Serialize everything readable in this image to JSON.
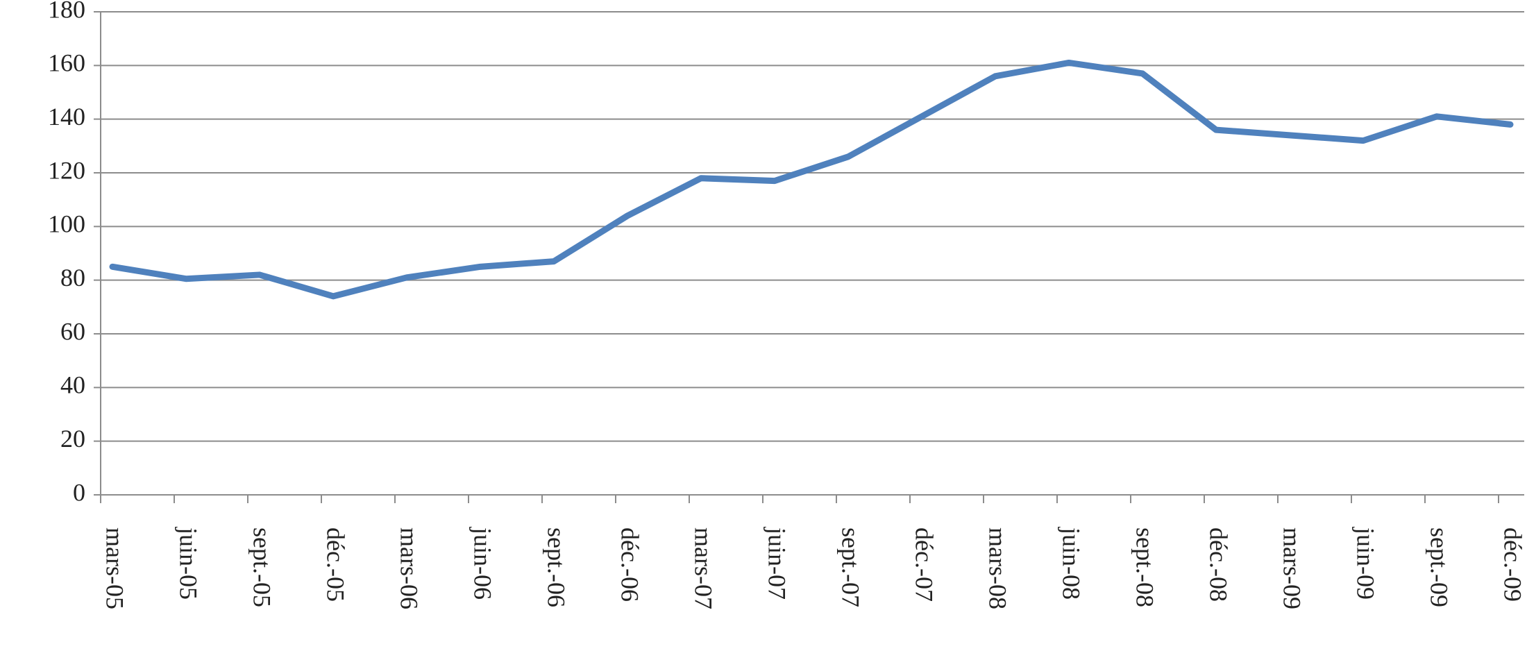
{
  "chart_data": {
    "type": "line",
    "categories": [
      "mars-05",
      "juin-05",
      "sept.-05",
      "déc.-05",
      "mars-06",
      "juin-06",
      "sept.-06",
      "déc.-06",
      "mars-07",
      "juin-07",
      "sept.-07",
      "déc.-07",
      "mars-08",
      "juin-08",
      "sept.-08",
      "déc.-08",
      "mars-09",
      "juin-09",
      "sept.-09",
      "déc.-09"
    ],
    "series": [
      {
        "color": "#4f81bd",
        "values": [
          85,
          80.5,
          82,
          74,
          81,
          85,
          87,
          104,
          118,
          117,
          126,
          141,
          156,
          161,
          157,
          136,
          134,
          132,
          141,
          138
        ]
      }
    ],
    "ylim": [
      0,
      180
    ],
    "yticks": [
      0,
      20,
      40,
      60,
      80,
      100,
      120,
      140,
      160,
      180
    ],
    "grid": true
  }
}
